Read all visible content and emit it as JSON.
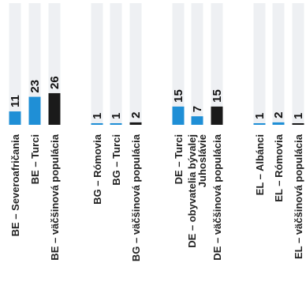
{
  "chart_data": {
    "type": "bar",
    "orientation": "vertical",
    "categories": [
      "BE – Severoafričania",
      "BE – Turci",
      "BE – väčšinová populácia",
      "BG – Rómovia",
      "BG – Turci",
      "BG – väčšinová populácia",
      "DE – Turci",
      "DE – obyvatelia bývalej Juhoslávie",
      "DE – väčšinová populácia",
      "EL – Albánci",
      "EL – Rómovia",
      "EL – väčšinová populácia"
    ],
    "values": [
      11,
      23,
      26,
      1,
      1,
      2,
      15,
      7,
      15,
      1,
      2,
      1
    ],
    "value_labels": [
      "11",
      "23",
      "26",
      "1",
      "1",
      "2",
      "15",
      "7",
      "15",
      "1",
      "2",
      "1"
    ],
    "groups": [
      "BE",
      "BG",
      "DE",
      "EL"
    ],
    "ylim": [
      0,
      100
    ],
    "grid": false,
    "legend": "none",
    "title": "",
    "xlabel": "",
    "ylabel": "",
    "colors": {
      "minority": "#1f8fd6",
      "majority": "#1a1a1a",
      "remainder": "#eef0f3",
      "background": "#ffffff"
    }
  }
}
